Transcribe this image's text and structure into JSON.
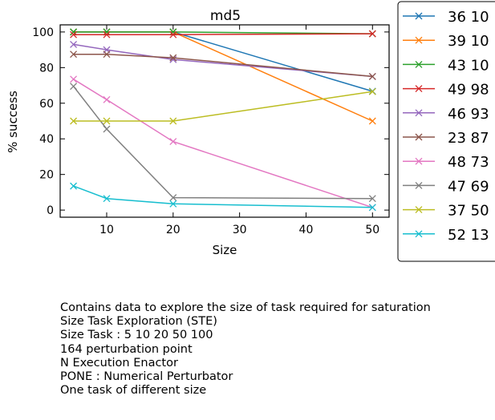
{
  "chart_data": {
    "type": "line",
    "title": "md5",
    "xlabel": "Size",
    "ylabel": "% success",
    "xlim": [
      3,
      52.5
    ],
    "ylim": [
      -4,
      104
    ],
    "xticks": [
      10,
      20,
      30,
      40,
      50
    ],
    "yticks": [
      0,
      20,
      40,
      60,
      80,
      100
    ],
    "grid": false,
    "legend_position": "outside-right",
    "x": [
      5,
      10,
      20,
      50
    ],
    "series": [
      {
        "name": "36 10",
        "color": "#1f77b4",
        "values": [
          100,
          100,
          100,
          66.7
        ]
      },
      {
        "name": "39 10",
        "color": "#ff7f0e",
        "values": [
          100,
          100,
          100,
          50
        ]
      },
      {
        "name": "43 10",
        "color": "#2ca02c",
        "values": [
          100,
          100,
          100,
          99
        ]
      },
      {
        "name": "49 98",
        "color": "#d62728",
        "values": [
          98.5,
          98.5,
          98.5,
          99
        ]
      },
      {
        "name": "46 93",
        "color": "#9467bd",
        "values": [
          93,
          90,
          84.5,
          75
        ]
      },
      {
        "name": "23 87",
        "color": "#8c564b",
        "values": [
          87.5,
          87.5,
          85.5,
          75
        ]
      },
      {
        "name": "48 73",
        "color": "#e377c2",
        "values": [
          73.5,
          62,
          38.5,
          1.5
        ]
      },
      {
        "name": "47 69",
        "color": "#7f7f7f",
        "values": [
          69.5,
          45.5,
          7,
          6.5
        ]
      },
      {
        "name": "37 50",
        "color": "#bcbd22",
        "values": [
          50,
          50,
          50,
          66.5
        ]
      },
      {
        "name": "52 13",
        "color": "#17becf",
        "values": [
          13.5,
          6.5,
          3.5,
          1.5
        ]
      }
    ]
  },
  "caption_lines": [
    "Contains data to explore the size of task required for saturation",
    "Size Task Exploration (STE)",
    "Size Task : 5 10 20 50 100",
    "164 perturbation point",
    "N Execution Enactor",
    "PONE : Numerical Perturbator",
    "One task of different size"
  ]
}
